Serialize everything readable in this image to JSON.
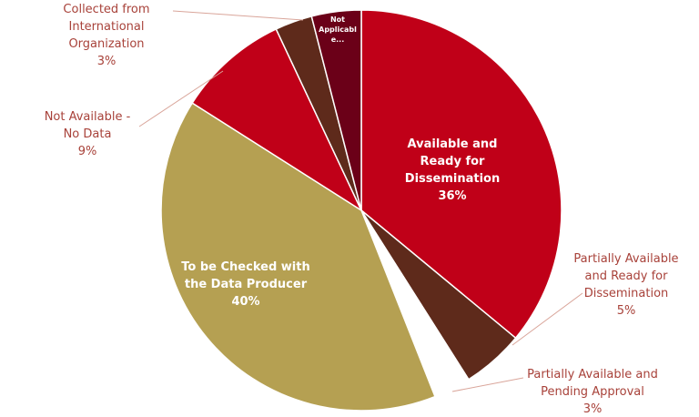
{
  "chart_data": {
    "type": "pie",
    "title": "",
    "slices": [
      {
        "label_lines": [
          "Available and",
          "Ready for",
          "Dissemination"
        ],
        "pct_label": "36%",
        "value": 36,
        "color": "#c00018",
        "label_pos": "inside"
      },
      {
        "label_lines": [
          "Partially Available",
          "and Ready for",
          "Dissemination"
        ],
        "pct_label": "5%",
        "value": 5,
        "color": "#5e2a1b",
        "label_pos": "outside"
      },
      {
        "label_lines": [
          "Partially Available and",
          "Pending Approval"
        ],
        "pct_label": "3%",
        "value": 3,
        "color": "#ffffff",
        "label_pos": "outside"
      },
      {
        "label_lines": [
          "To be Checked with",
          "the Data Producer"
        ],
        "pct_label": "40%",
        "value": 40,
        "color": "#b5a052",
        "label_pos": "inside"
      },
      {
        "label_lines": [
          "Not Available -",
          "No Data"
        ],
        "pct_label": "9%",
        "value": 9,
        "color": "#c00018",
        "label_pos": "outside"
      },
      {
        "label_lines": [
          "Collected from",
          "International",
          "Organization"
        ],
        "pct_label": "3%",
        "value": 3,
        "color": "#5e2a1b",
        "label_pos": "outside"
      },
      {
        "label_lines": [
          "Not",
          "Applicabl",
          "e..."
        ],
        "pct_label": "",
        "value": 4,
        "color": "#6b0018",
        "label_pos": "inside-small"
      }
    ]
  }
}
